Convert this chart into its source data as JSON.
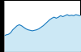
{
  "x": [
    0,
    1,
    2,
    3,
    4,
    5,
    6,
    7,
    8,
    9,
    10,
    11,
    12,
    13,
    14,
    15,
    16,
    17,
    18,
    19,
    20,
    21,
    22,
    23,
    24,
    25,
    26,
    27,
    28,
    29,
    30,
    31,
    32,
    33,
    34,
    35
  ],
  "y": [
    30,
    32,
    33,
    36,
    42,
    46,
    50,
    52,
    50,
    47,
    44,
    42,
    41,
    40,
    41,
    42,
    44,
    47,
    50,
    54,
    58,
    62,
    65,
    67,
    65,
    67,
    70,
    68,
    70,
    72,
    70,
    71,
    70,
    72,
    71,
    70
  ],
  "line_color": "#1a7abf",
  "fill_color": "#cce8f5",
  "background_color": "#000000",
  "axes_color": "#ffffff",
  "line_width": 0.8,
  "ylim_min": 0,
  "ylim_max": 100,
  "spine_color": "#888888",
  "spine_linewidth": 0.6
}
